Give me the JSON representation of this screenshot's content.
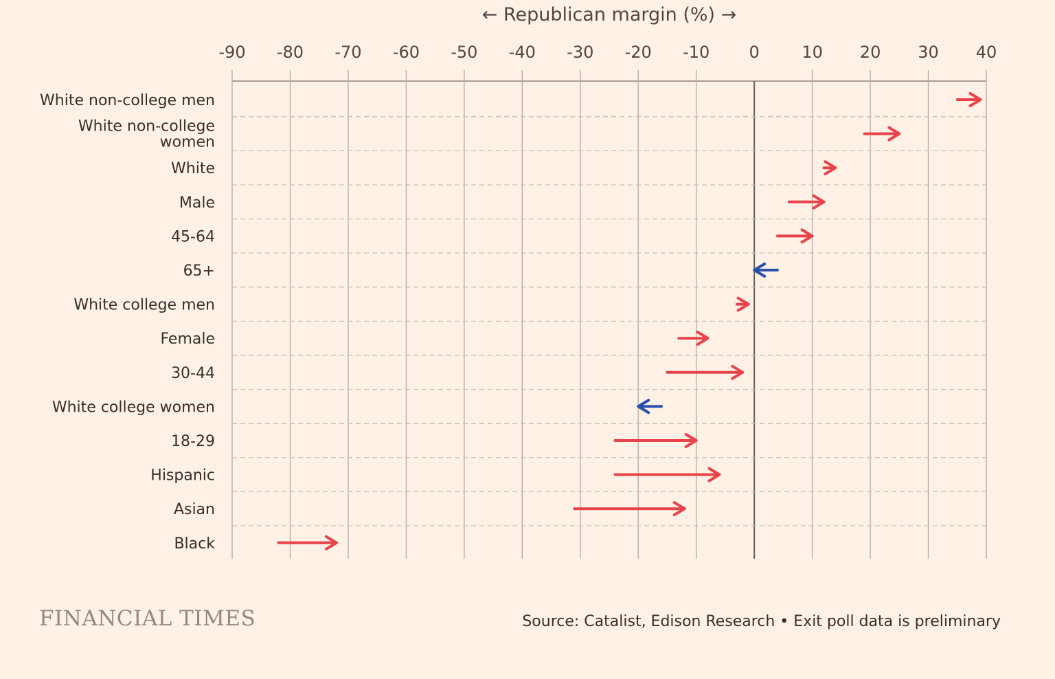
{
  "chart_data": {
    "type": "arrow",
    "title": "← Republican margin (%) →",
    "xlim": [
      -90,
      40
    ],
    "xticks": [
      -90,
      -80,
      -70,
      -60,
      -50,
      -40,
      -30,
      -20,
      -10,
      0,
      10,
      20,
      30,
      40
    ],
    "grid": true,
    "colors": {
      "toward_republican": "#e8424a",
      "toward_democrat": "#2a4fad"
    },
    "rows": [
      {
        "label": [
          "White non-college men"
        ],
        "from": 35,
        "to": 39
      },
      {
        "label": [
          "White non-college",
          "women"
        ],
        "from": 19,
        "to": 25
      },
      {
        "label": [
          "White"
        ],
        "from": 12,
        "to": 14
      },
      {
        "label": [
          "Male"
        ],
        "from": 6,
        "to": 12
      },
      {
        "label": [
          "45-64"
        ],
        "from": 4,
        "to": 10
      },
      {
        "label": [
          "65+"
        ],
        "from": 4,
        "to": 0
      },
      {
        "label": [
          "White college men"
        ],
        "from": -3,
        "to": -1
      },
      {
        "label": [
          "Female"
        ],
        "from": -13,
        "to": -8
      },
      {
        "label": [
          "30-44"
        ],
        "from": -15,
        "to": -2
      },
      {
        "label": [
          "White college women"
        ],
        "from": -16,
        "to": -20
      },
      {
        "label": [
          "18-29"
        ],
        "from": -24,
        "to": -10
      },
      {
        "label": [
          "Hispanic"
        ],
        "from": -24,
        "to": -6
      },
      {
        "label": [
          "Asian"
        ],
        "from": -31,
        "to": -12
      },
      {
        "label": [
          "Black"
        ],
        "from": -82,
        "to": -72
      }
    ]
  },
  "footer": {
    "brand": "FINANCIAL TIMES",
    "source": "Source: Catalist, Edison Research • Exit poll data is preliminary"
  }
}
